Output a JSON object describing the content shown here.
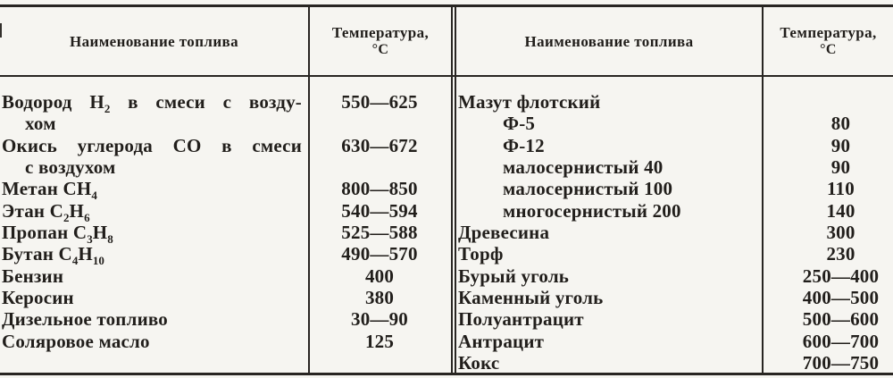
{
  "colors": {
    "paper": "#f6f5f1",
    "ink": "#211e1b",
    "rule": "#282522"
  },
  "table": {
    "header": {
      "name_label": "Наименование топлива",
      "temp_label": "Температура,",
      "temp_unit": "°С"
    },
    "left_rows": [
      {
        "name": "Водород H{2} в смеси с возду-",
        "indent": 0,
        "justify": true,
        "temp": "550—625"
      },
      {
        "name": "хом",
        "indent": 1,
        "justify": false,
        "temp": ""
      },
      {
        "name": "Окись углерода CO в смеси",
        "indent": 0,
        "justify": true,
        "temp": "630—672"
      },
      {
        "name": "с воздухом",
        "indent": 1,
        "justify": false,
        "temp": ""
      },
      {
        "name": "Метан CH{4}",
        "indent": 0,
        "justify": false,
        "temp": "800—850"
      },
      {
        "name": "Этан C{2}H{6}",
        "indent": 0,
        "justify": false,
        "temp": "540—594"
      },
      {
        "name": "Пропан C{3}H{8}",
        "indent": 0,
        "justify": false,
        "temp": "525—588"
      },
      {
        "name": "Бутан C{4}H{10}",
        "indent": 0,
        "justify": false,
        "temp": "490—570"
      },
      {
        "name": "Бензин",
        "indent": 0,
        "justify": false,
        "temp": "400"
      },
      {
        "name": "Керосин",
        "indent": 0,
        "justify": false,
        "temp": "380"
      },
      {
        "name": "Дизельное топливо",
        "indent": 0,
        "justify": false,
        "temp": "30—90"
      },
      {
        "name": "Соляровое масло",
        "indent": 0,
        "justify": false,
        "temp": "125"
      }
    ],
    "right_rows": [
      {
        "name": "Мазут флотский",
        "indent": 0,
        "justify": false,
        "temp": ""
      },
      {
        "name": "Ф-5",
        "indent": 2,
        "justify": false,
        "temp": "80"
      },
      {
        "name": "Ф-12",
        "indent": 2,
        "justify": false,
        "temp": "90"
      },
      {
        "name": "малосернистый 40",
        "indent": 2,
        "justify": false,
        "temp": "90"
      },
      {
        "name": "малосернистый 100",
        "indent": 2,
        "justify": false,
        "temp": "110"
      },
      {
        "name": "многосернистый 200",
        "indent": 2,
        "justify": false,
        "temp": "140"
      },
      {
        "name": "Древесина",
        "indent": 0,
        "justify": false,
        "temp": "300"
      },
      {
        "name": "Торф",
        "indent": 0,
        "justify": false,
        "temp": "230"
      },
      {
        "name": "Бурый уголь",
        "indent": 0,
        "justify": false,
        "temp": "250—400"
      },
      {
        "name": "Каменный уголь",
        "indent": 0,
        "justify": false,
        "temp": "400—500"
      },
      {
        "name": "Полуантрацит",
        "indent": 0,
        "justify": false,
        "temp": "500—600"
      },
      {
        "name": "Антрацит",
        "indent": 0,
        "justify": false,
        "temp": "600—700"
      },
      {
        "name": "Кокс",
        "indent": 0,
        "justify": false,
        "temp": "700—750"
      }
    ]
  }
}
